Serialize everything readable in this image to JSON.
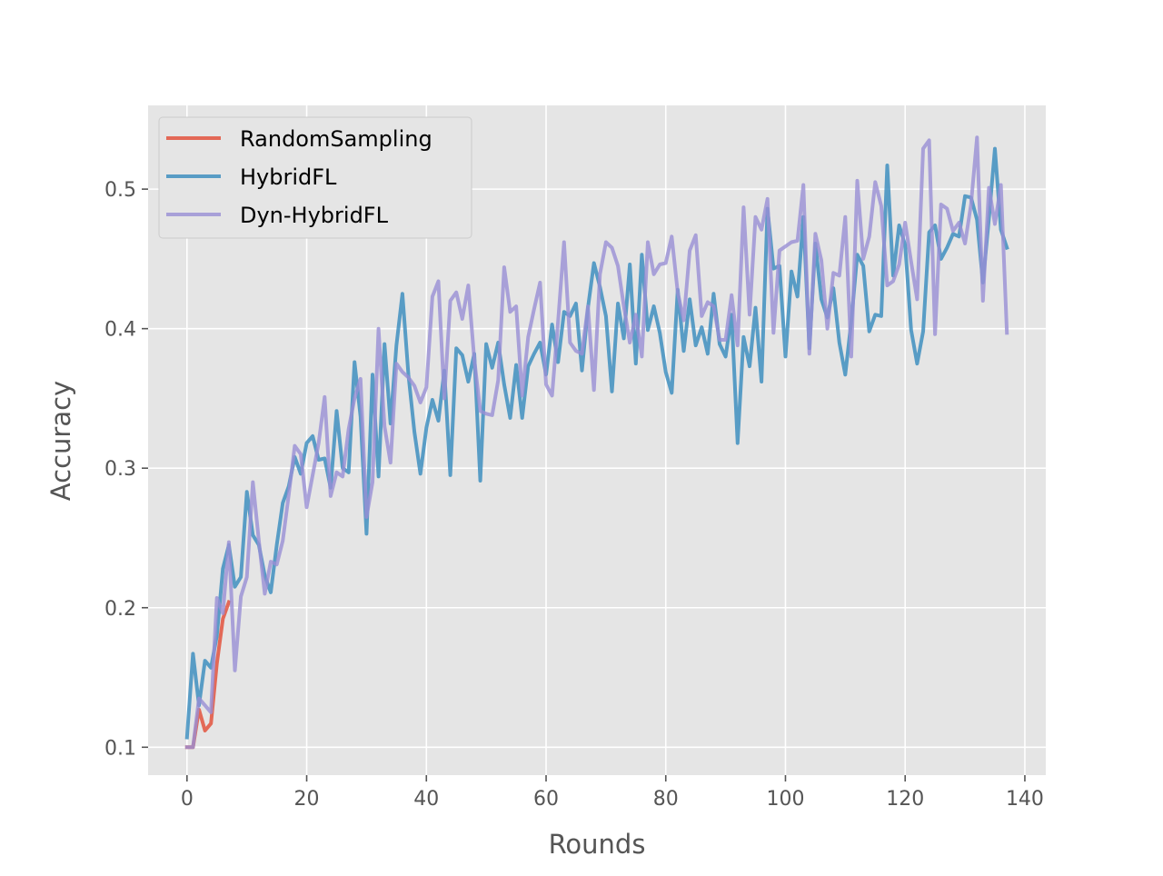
{
  "chart_data": {
    "type": "line",
    "title": "",
    "xlabel": "Rounds",
    "ylabel": "Accuracy",
    "xlim": [
      -6.5,
      143.5
    ],
    "ylim": [
      0.08,
      0.56
    ],
    "xticks": [
      0,
      20,
      40,
      60,
      80,
      100,
      120,
      140
    ],
    "yticks": [
      0.1,
      0.2,
      0.3,
      0.4,
      0.5
    ],
    "xtick_labels": [
      "0",
      "20",
      "40",
      "60",
      "80",
      "100",
      "120",
      "140"
    ],
    "ytick_labels": [
      "0.1",
      "0.2",
      "0.3",
      "0.4",
      "0.5"
    ],
    "grid": true,
    "legend_position": "upper-left",
    "series": [
      {
        "name": "RandomSampling",
        "color": "#e24a33",
        "x": [
          0,
          1,
          2,
          3,
          4,
          5,
          6,
          7
        ],
        "y": [
          0.1,
          0.1,
          0.127,
          0.112,
          0.117,
          0.16,
          0.192,
          0.204
        ]
      },
      {
        "name": "HybridFL",
        "color": "#348abd",
        "x": [
          0,
          1,
          2,
          3,
          4,
          5,
          6,
          7,
          8,
          9,
          10,
          11,
          12,
          13,
          14,
          15,
          16,
          17,
          18,
          19,
          20,
          21,
          22,
          23,
          24,
          25,
          26,
          27,
          28,
          29,
          30,
          31,
          32,
          33,
          34,
          35,
          36,
          37,
          38,
          39,
          40,
          41,
          42,
          43,
          44,
          45,
          46,
          47,
          48,
          49,
          50,
          51,
          52,
          53,
          54,
          55,
          56,
          57,
          58,
          59,
          60,
          61,
          62,
          63,
          64,
          65,
          66,
          67,
          68,
          69,
          70,
          71,
          72,
          73,
          74,
          75,
          76,
          77,
          78,
          79,
          80,
          81,
          82,
          83,
          84,
          85,
          86,
          87,
          88,
          89,
          90,
          91,
          92,
          93,
          94,
          95,
          96,
          97,
          98,
          99,
          100,
          101,
          102,
          103,
          104,
          105,
          106,
          107,
          108,
          109,
          110,
          111,
          112,
          113,
          114,
          115,
          116,
          117,
          118,
          119,
          120,
          121,
          122,
          123,
          124,
          125,
          126,
          127,
          128,
          129,
          130,
          131,
          132,
          133,
          134,
          135,
          136,
          137
        ],
        "y": [
          0.107,
          0.167,
          0.13,
          0.162,
          0.157,
          0.18,
          0.228,
          0.245,
          0.215,
          0.222,
          0.283,
          0.252,
          0.245,
          0.223,
          0.211,
          0.245,
          0.275,
          0.287,
          0.308,
          0.296,
          0.318,
          0.323,
          0.306,
          0.307,
          0.286,
          0.341,
          0.3,
          0.297,
          0.376,
          0.337,
          0.253,
          0.367,
          0.294,
          0.389,
          0.332,
          0.388,
          0.425,
          0.367,
          0.326,
          0.296,
          0.329,
          0.349,
          0.334,
          0.37,
          0.295,
          0.386,
          0.381,
          0.362,
          0.382,
          0.291,
          0.389,
          0.372,
          0.39,
          0.36,
          0.336,
          0.374,
          0.336,
          0.373,
          0.382,
          0.39,
          0.367,
          0.403,
          0.376,
          0.412,
          0.409,
          0.418,
          0.37,
          0.415,
          0.447,
          0.43,
          0.409,
          0.355,
          0.418,
          0.393,
          0.446,
          0.375,
          0.453,
          0.399,
          0.416,
          0.397,
          0.369,
          0.354,
          0.428,
          0.384,
          0.421,
          0.388,
          0.401,
          0.382,
          0.425,
          0.389,
          0.38,
          0.41,
          0.318,
          0.394,
          0.373,
          0.415,
          0.362,
          0.486,
          0.443,
          0.445,
          0.38,
          0.441,
          0.423,
          0.48,
          0.386,
          0.461,
          0.421,
          0.408,
          0.429,
          0.39,
          0.367,
          0.405,
          0.453,
          0.445,
          0.398,
          0.41,
          0.409,
          0.517,
          0.438,
          0.474,
          0.46,
          0.399,
          0.375,
          0.398,
          0.469,
          0.474,
          0.45,
          0.458,
          0.468,
          0.466,
          0.495,
          0.494,
          0.478,
          0.433,
          0.479,
          0.529,
          0.471,
          0.458
        ]
      },
      {
        "name": "Dyn-HybridFL",
        "color": "#988ed5",
        "x": [
          0,
          1,
          2,
          3,
          4,
          5,
          6,
          7,
          8,
          9,
          10,
          11,
          12,
          13,
          14,
          15,
          16,
          17,
          18,
          19,
          20,
          21,
          22,
          23,
          24,
          25,
          26,
          27,
          28,
          29,
          30,
          31,
          32,
          33,
          34,
          35,
          36,
          37,
          38,
          39,
          40,
          41,
          42,
          43,
          44,
          45,
          46,
          47,
          48,
          49,
          50,
          51,
          52,
          53,
          54,
          55,
          56,
          57,
          58,
          59,
          60,
          61,
          62,
          63,
          64,
          65,
          66,
          67,
          68,
          69,
          70,
          71,
          72,
          73,
          74,
          75,
          76,
          77,
          78,
          79,
          80,
          81,
          82,
          83,
          84,
          85,
          86,
          87,
          88,
          89,
          90,
          91,
          92,
          93,
          94,
          95,
          96,
          97,
          98,
          99,
          100,
          101,
          102,
          103,
          104,
          105,
          106,
          107,
          108,
          109,
          110,
          111,
          112,
          113,
          114,
          115,
          116,
          117,
          118,
          119,
          120,
          121,
          122,
          123,
          124,
          125,
          126,
          127,
          128,
          129,
          130,
          131,
          132,
          133,
          134,
          135,
          136,
          137
        ],
        "y": [
          0.1,
          0.1,
          0.135,
          0.13,
          0.125,
          0.207,
          0.196,
          0.247,
          0.155,
          0.208,
          0.222,
          0.29,
          0.248,
          0.21,
          0.233,
          0.231,
          0.248,
          0.281,
          0.316,
          0.31,
          0.272,
          0.295,
          0.318,
          0.351,
          0.28,
          0.297,
          0.294,
          0.328,
          0.35,
          0.364,
          0.265,
          0.29,
          0.4,
          0.33,
          0.304,
          0.375,
          0.369,
          0.365,
          0.359,
          0.347,
          0.358,
          0.423,
          0.434,
          0.35,
          0.42,
          0.426,
          0.407,
          0.431,
          0.378,
          0.341,
          0.339,
          0.338,
          0.363,
          0.444,
          0.412,
          0.416,
          0.352,
          0.394,
          0.414,
          0.433,
          0.36,
          0.352,
          0.405,
          0.462,
          0.39,
          0.384,
          0.382,
          0.416,
          0.356,
          0.439,
          0.462,
          0.458,
          0.445,
          0.416,
          0.39,
          0.41,
          0.38,
          0.462,
          0.439,
          0.446,
          0.447,
          0.466,
          0.426,
          0.406,
          0.456,
          0.467,
          0.409,
          0.419,
          0.416,
          0.392,
          0.392,
          0.424,
          0.388,
          0.487,
          0.41,
          0.48,
          0.471,
          0.493,
          0.397,
          0.456,
          0.459,
          0.462,
          0.463,
          0.503,
          0.382,
          0.468,
          0.449,
          0.4,
          0.44,
          0.438,
          0.48,
          0.38,
          0.506,
          0.45,
          0.466,
          0.505,
          0.488,
          0.431,
          0.434,
          0.446,
          0.476,
          0.448,
          0.421,
          0.529,
          0.535,
          0.396,
          0.489,
          0.486,
          0.47,
          0.476,
          0.461,
          0.489,
          0.537,
          0.42,
          0.501,
          0.475,
          0.503,
          0.397
        ]
      }
    ]
  }
}
